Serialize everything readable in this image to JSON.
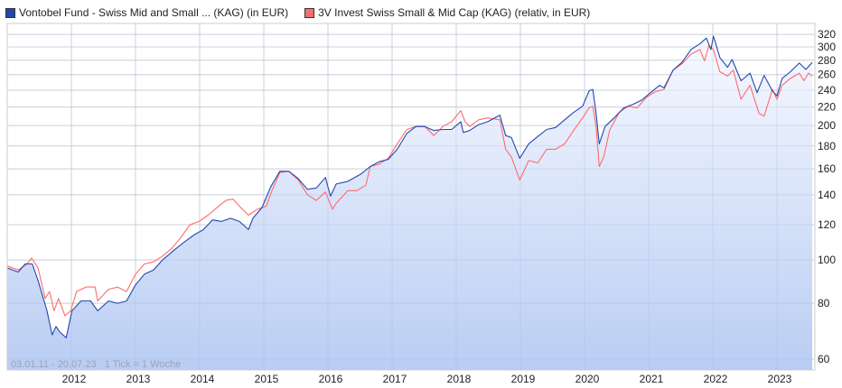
{
  "chart_data": {
    "type": "line",
    "scale": "log",
    "ylim": [
      58,
      335
    ],
    "xlim": [
      2011.0,
      2023.56
    ],
    "yticks": [
      60,
      80,
      100,
      120,
      140,
      160,
      180,
      200,
      220,
      240,
      260,
      280,
      300,
      320
    ],
    "xticks": [
      2012,
      2013,
      2014,
      2015,
      2016,
      2017,
      2018,
      2019,
      2020,
      2021,
      2022,
      2023
    ],
    "grid": true,
    "legend_position": "top-left",
    "footer": "03.01.11 - 20.07.23   1 Tick = 1 Woche",
    "series": [
      {
        "name": "Vontobel Fund - Swiss Mid and Small ... (KAG) (in EUR)",
        "color": "#2148b0",
        "points": [
          [
            2011.0,
            96
          ],
          [
            2011.17,
            94
          ],
          [
            2011.28,
            98
          ],
          [
            2011.39,
            98
          ],
          [
            2011.48,
            90
          ],
          [
            2011.62,
            77
          ],
          [
            2011.7,
            68
          ],
          [
            2011.76,
            71
          ],
          [
            2011.82,
            69
          ],
          [
            2011.92,
            67
          ],
          [
            2012.01,
            77
          ],
          [
            2012.15,
            81
          ],
          [
            2012.3,
            81
          ],
          [
            2012.41,
            77
          ],
          [
            2012.58,
            81
          ],
          [
            2012.72,
            80
          ],
          [
            2012.86,
            81
          ],
          [
            2013.0,
            88
          ],
          [
            2013.14,
            93
          ],
          [
            2013.28,
            95
          ],
          [
            2013.42,
            100
          ],
          [
            2013.63,
            106
          ],
          [
            2013.77,
            110
          ],
          [
            2013.92,
            114
          ],
          [
            2014.06,
            117
          ],
          [
            2014.2,
            123
          ],
          [
            2014.34,
            122
          ],
          [
            2014.48,
            124
          ],
          [
            2014.62,
            122
          ],
          [
            2014.76,
            117
          ],
          [
            2014.83,
            124
          ],
          [
            2014.97,
            131
          ],
          [
            2015.11,
            146
          ],
          [
            2015.25,
            158
          ],
          [
            2015.39,
            158
          ],
          [
            2015.54,
            152
          ],
          [
            2015.68,
            144
          ],
          [
            2015.82,
            145
          ],
          [
            2015.96,
            153
          ],
          [
            2016.04,
            139
          ],
          [
            2016.13,
            148
          ],
          [
            2016.31,
            150
          ],
          [
            2016.52,
            156
          ],
          [
            2016.66,
            162
          ],
          [
            2016.8,
            166
          ],
          [
            2016.94,
            168
          ],
          [
            2017.08,
            177
          ],
          [
            2017.23,
            192
          ],
          [
            2017.37,
            199
          ],
          [
            2017.51,
            199
          ],
          [
            2017.65,
            195
          ],
          [
            2017.79,
            196
          ],
          [
            2017.93,
            196
          ],
          [
            2018.07,
            204
          ],
          [
            2018.11,
            193
          ],
          [
            2018.21,
            195
          ],
          [
            2018.35,
            201
          ],
          [
            2018.49,
            204
          ],
          [
            2018.68,
            211
          ],
          [
            2018.77,
            190
          ],
          [
            2018.86,
            188
          ],
          [
            2018.99,
            169
          ],
          [
            2019.13,
            182
          ],
          [
            2019.27,
            189
          ],
          [
            2019.41,
            196
          ],
          [
            2019.55,
            198
          ],
          [
            2019.69,
            206
          ],
          [
            2019.83,
            214
          ],
          [
            2019.97,
            221
          ],
          [
            2020.07,
            239
          ],
          [
            2020.13,
            241
          ],
          [
            2020.18,
            213
          ],
          [
            2020.23,
            182
          ],
          [
            2020.32,
            199
          ],
          [
            2020.46,
            208
          ],
          [
            2020.61,
            219
          ],
          [
            2020.75,
            223
          ],
          [
            2020.89,
            228
          ],
          [
            2021.03,
            237
          ],
          [
            2021.17,
            246
          ],
          [
            2021.24,
            243
          ],
          [
            2021.38,
            266
          ],
          [
            2021.52,
            277
          ],
          [
            2021.66,
            296
          ],
          [
            2021.8,
            305
          ],
          [
            2021.9,
            314
          ],
          [
            2021.97,
            296
          ],
          [
            2022.01,
            317
          ],
          [
            2022.11,
            284
          ],
          [
            2022.23,
            270
          ],
          [
            2022.3,
            281
          ],
          [
            2022.44,
            252
          ],
          [
            2022.58,
            262
          ],
          [
            2022.69,
            237
          ],
          [
            2022.8,
            259
          ],
          [
            2022.93,
            239
          ],
          [
            2023.0,
            233
          ],
          [
            2023.08,
            255
          ],
          [
            2023.21,
            264
          ],
          [
            2023.35,
            276
          ],
          [
            2023.45,
            267
          ],
          [
            2023.52,
            274
          ],
          [
            2023.55,
            277
          ]
        ]
      },
      {
        "name": "3V Invest Swiss Small & Mid Cap (KAG) (relativ, in EUR)",
        "color": "#ff6b6b",
        "points": [
          [
            2011.0,
            97
          ],
          [
            2011.17,
            95
          ],
          [
            2011.31,
            98
          ],
          [
            2011.38,
            101
          ],
          [
            2011.48,
            96
          ],
          [
            2011.59,
            82
          ],
          [
            2011.66,
            85
          ],
          [
            2011.73,
            77
          ],
          [
            2011.8,
            82
          ],
          [
            2011.9,
            75
          ],
          [
            2011.99,
            77
          ],
          [
            2012.08,
            85
          ],
          [
            2012.23,
            87
          ],
          [
            2012.37,
            87
          ],
          [
            2012.41,
            81
          ],
          [
            2012.58,
            86
          ],
          [
            2012.72,
            87
          ],
          [
            2012.86,
            85
          ],
          [
            2013.0,
            93
          ],
          [
            2013.14,
            98
          ],
          [
            2013.28,
            99
          ],
          [
            2013.42,
            102
          ],
          [
            2013.56,
            106
          ],
          [
            2013.7,
            112
          ],
          [
            2013.85,
            120
          ],
          [
            2013.99,
            122
          ],
          [
            2014.13,
            126
          ],
          [
            2014.27,
            131
          ],
          [
            2014.41,
            136
          ],
          [
            2014.52,
            137
          ],
          [
            2014.62,
            132
          ],
          [
            2014.76,
            126
          ],
          [
            2014.9,
            130
          ],
          [
            2015.04,
            132
          ],
          [
            2015.11,
            141
          ],
          [
            2015.25,
            157
          ],
          [
            2015.39,
            158
          ],
          [
            2015.54,
            151
          ],
          [
            2015.68,
            140
          ],
          [
            2015.82,
            136
          ],
          [
            2015.96,
            142
          ],
          [
            2016.07,
            130
          ],
          [
            2016.13,
            134
          ],
          [
            2016.31,
            143
          ],
          [
            2016.45,
            143
          ],
          [
            2016.59,
            147
          ],
          [
            2016.66,
            162
          ],
          [
            2016.8,
            164
          ],
          [
            2016.94,
            169
          ],
          [
            2017.08,
            182
          ],
          [
            2017.23,
            196
          ],
          [
            2017.37,
            199
          ],
          [
            2017.51,
            199
          ],
          [
            2017.65,
            190
          ],
          [
            2017.79,
            199
          ],
          [
            2017.93,
            204
          ],
          [
            2018.07,
            216
          ],
          [
            2018.14,
            204
          ],
          [
            2018.21,
            199
          ],
          [
            2018.35,
            206
          ],
          [
            2018.49,
            208
          ],
          [
            2018.68,
            206
          ],
          [
            2018.77,
            177
          ],
          [
            2018.86,
            170
          ],
          [
            2018.99,
            151
          ],
          [
            2019.13,
            167
          ],
          [
            2019.27,
            165
          ],
          [
            2019.41,
            177
          ],
          [
            2019.55,
            177
          ],
          [
            2019.69,
            182
          ],
          [
            2019.83,
            195
          ],
          [
            2019.97,
            208
          ],
          [
            2020.07,
            219
          ],
          [
            2020.13,
            221
          ],
          [
            2020.18,
            199
          ],
          [
            2020.23,
            162
          ],
          [
            2020.3,
            170
          ],
          [
            2020.39,
            195
          ],
          [
            2020.54,
            214
          ],
          [
            2020.68,
            221
          ],
          [
            2020.82,
            219
          ],
          [
            2020.96,
            231
          ],
          [
            2021.1,
            238
          ],
          [
            2021.24,
            241
          ],
          [
            2021.38,
            266
          ],
          [
            2021.52,
            275
          ],
          [
            2021.66,
            289
          ],
          [
            2021.8,
            296
          ],
          [
            2021.87,
            279
          ],
          [
            2021.94,
            302
          ],
          [
            2022.01,
            296
          ],
          [
            2022.11,
            264
          ],
          [
            2022.23,
            258
          ],
          [
            2022.32,
            266
          ],
          [
            2022.44,
            229
          ],
          [
            2022.58,
            246
          ],
          [
            2022.72,
            213
          ],
          [
            2022.8,
            210
          ],
          [
            2022.93,
            241
          ],
          [
            2023.0,
            229
          ],
          [
            2023.08,
            246
          ],
          [
            2023.21,
            255
          ],
          [
            2023.35,
            262
          ],
          [
            2023.42,
            252
          ],
          [
            2023.49,
            262
          ],
          [
            2023.55,
            258
          ]
        ]
      }
    ]
  }
}
